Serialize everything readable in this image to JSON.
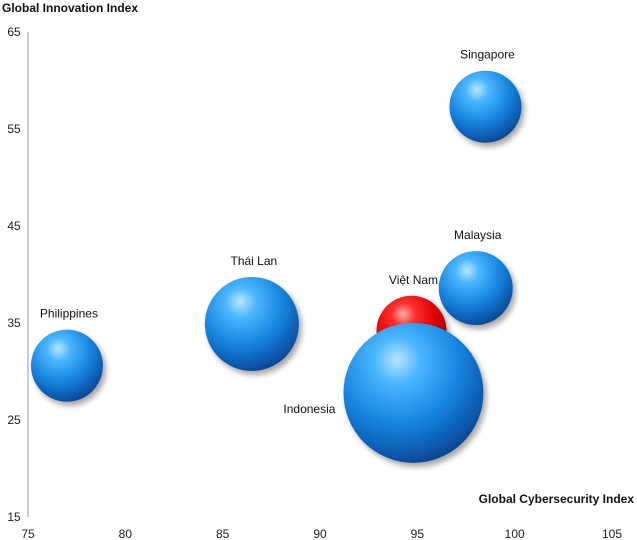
{
  "chart_data": {
    "type": "bubble",
    "xlabel": "Global Cybersecurity Index",
    "ylabel": "Global Innovation Index",
    "xlim": [
      75,
      105
    ],
    "ylim": [
      15,
      65
    ],
    "xticks": [
      75,
      80,
      85,
      90,
      95,
      100,
      105
    ],
    "yticks": [
      15,
      25,
      35,
      45,
      55,
      65
    ],
    "grid": false,
    "points": [
      {
        "label": "Singapore",
        "x": 98.5,
        "y": 57.3,
        "size": 36,
        "color": "#1e90e8"
      },
      {
        "label": "Malaysia",
        "x": 98.0,
        "y": 38.6,
        "size": 37,
        "color": "#1e90e8"
      },
      {
        "label": "Việt Nam",
        "x": 94.7,
        "y": 34.2,
        "size": 35,
        "color": "#e01010"
      },
      {
        "label": "Thái Lan",
        "x": 86.5,
        "y": 34.9,
        "size": 47,
        "color": "#1e90e8"
      },
      {
        "label": "Philippines",
        "x": 77.0,
        "y": 30.6,
        "size": 36,
        "color": "#1e90e8"
      },
      {
        "label": "Indonesia",
        "x": 94.8,
        "y": 27.8,
        "size": 70,
        "color": "#1e90e8"
      }
    ]
  }
}
